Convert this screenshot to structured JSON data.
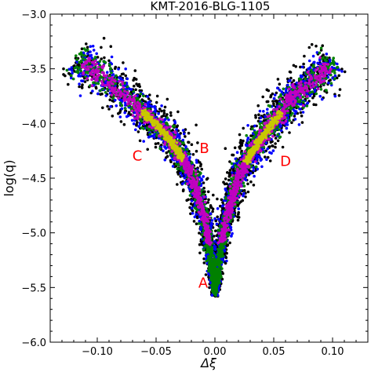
{
  "chart_data": {
    "type": "scatter",
    "title": "KMT-2016-BLG-1105",
    "xlabel": "Δξ",
    "ylabel": "log(q)",
    "xlim": [
      -0.14,
      0.13
    ],
    "ylim": [
      -6.0,
      -3.0
    ],
    "xticks": [
      -0.1,
      -0.05,
      0.0,
      0.05,
      0.1
    ],
    "xtick_labels": [
      "−0.10",
      "−0.05",
      "0.00",
      "0.05",
      "0.10"
    ],
    "yticks": [
      -6.0,
      -5.5,
      -5.0,
      -4.5,
      -4.0,
      -3.5,
      -3.0
    ],
    "ytick_labels": [
      "−6.0",
      "−5.5",
      "−5.0",
      "−4.5",
      "−4.0",
      "−3.5",
      "−3.0"
    ],
    "grid": false,
    "colors": {
      "level_5": "#000000",
      "level_4": "#0000ff",
      "level_3": "#008000",
      "level_2": "#c000c0",
      "level_1": "#c8c800",
      "annotation": "#ff0000"
    },
    "arms": [
      {
        "name": "left",
        "center_line": [
          [
            -0.118,
            -3.4
          ],
          [
            -0.072,
            -3.78
          ],
          [
            -0.04,
            -4.12
          ],
          [
            -0.02,
            -4.45
          ],
          [
            -0.008,
            -4.9
          ],
          [
            -0.002,
            -5.35
          ],
          [
            0.0,
            -5.55
          ]
        ]
      },
      {
        "name": "right",
        "center_line": [
          [
            0.1,
            -3.42
          ],
          [
            0.065,
            -3.78
          ],
          [
            0.038,
            -4.15
          ],
          [
            0.02,
            -4.48
          ],
          [
            0.009,
            -4.9
          ],
          [
            0.002,
            -5.35
          ],
          [
            0.0,
            -5.55
          ]
        ]
      }
    ],
    "annotations": [
      {
        "text": "A",
        "x": -0.01,
        "y": -5.45
      },
      {
        "text": "B",
        "x": -0.009,
        "y": -4.22
      },
      {
        "text": "C",
        "x": -0.066,
        "y": -4.29
      },
      {
        "text": "D",
        "x": 0.06,
        "y": -4.34
      }
    ]
  }
}
